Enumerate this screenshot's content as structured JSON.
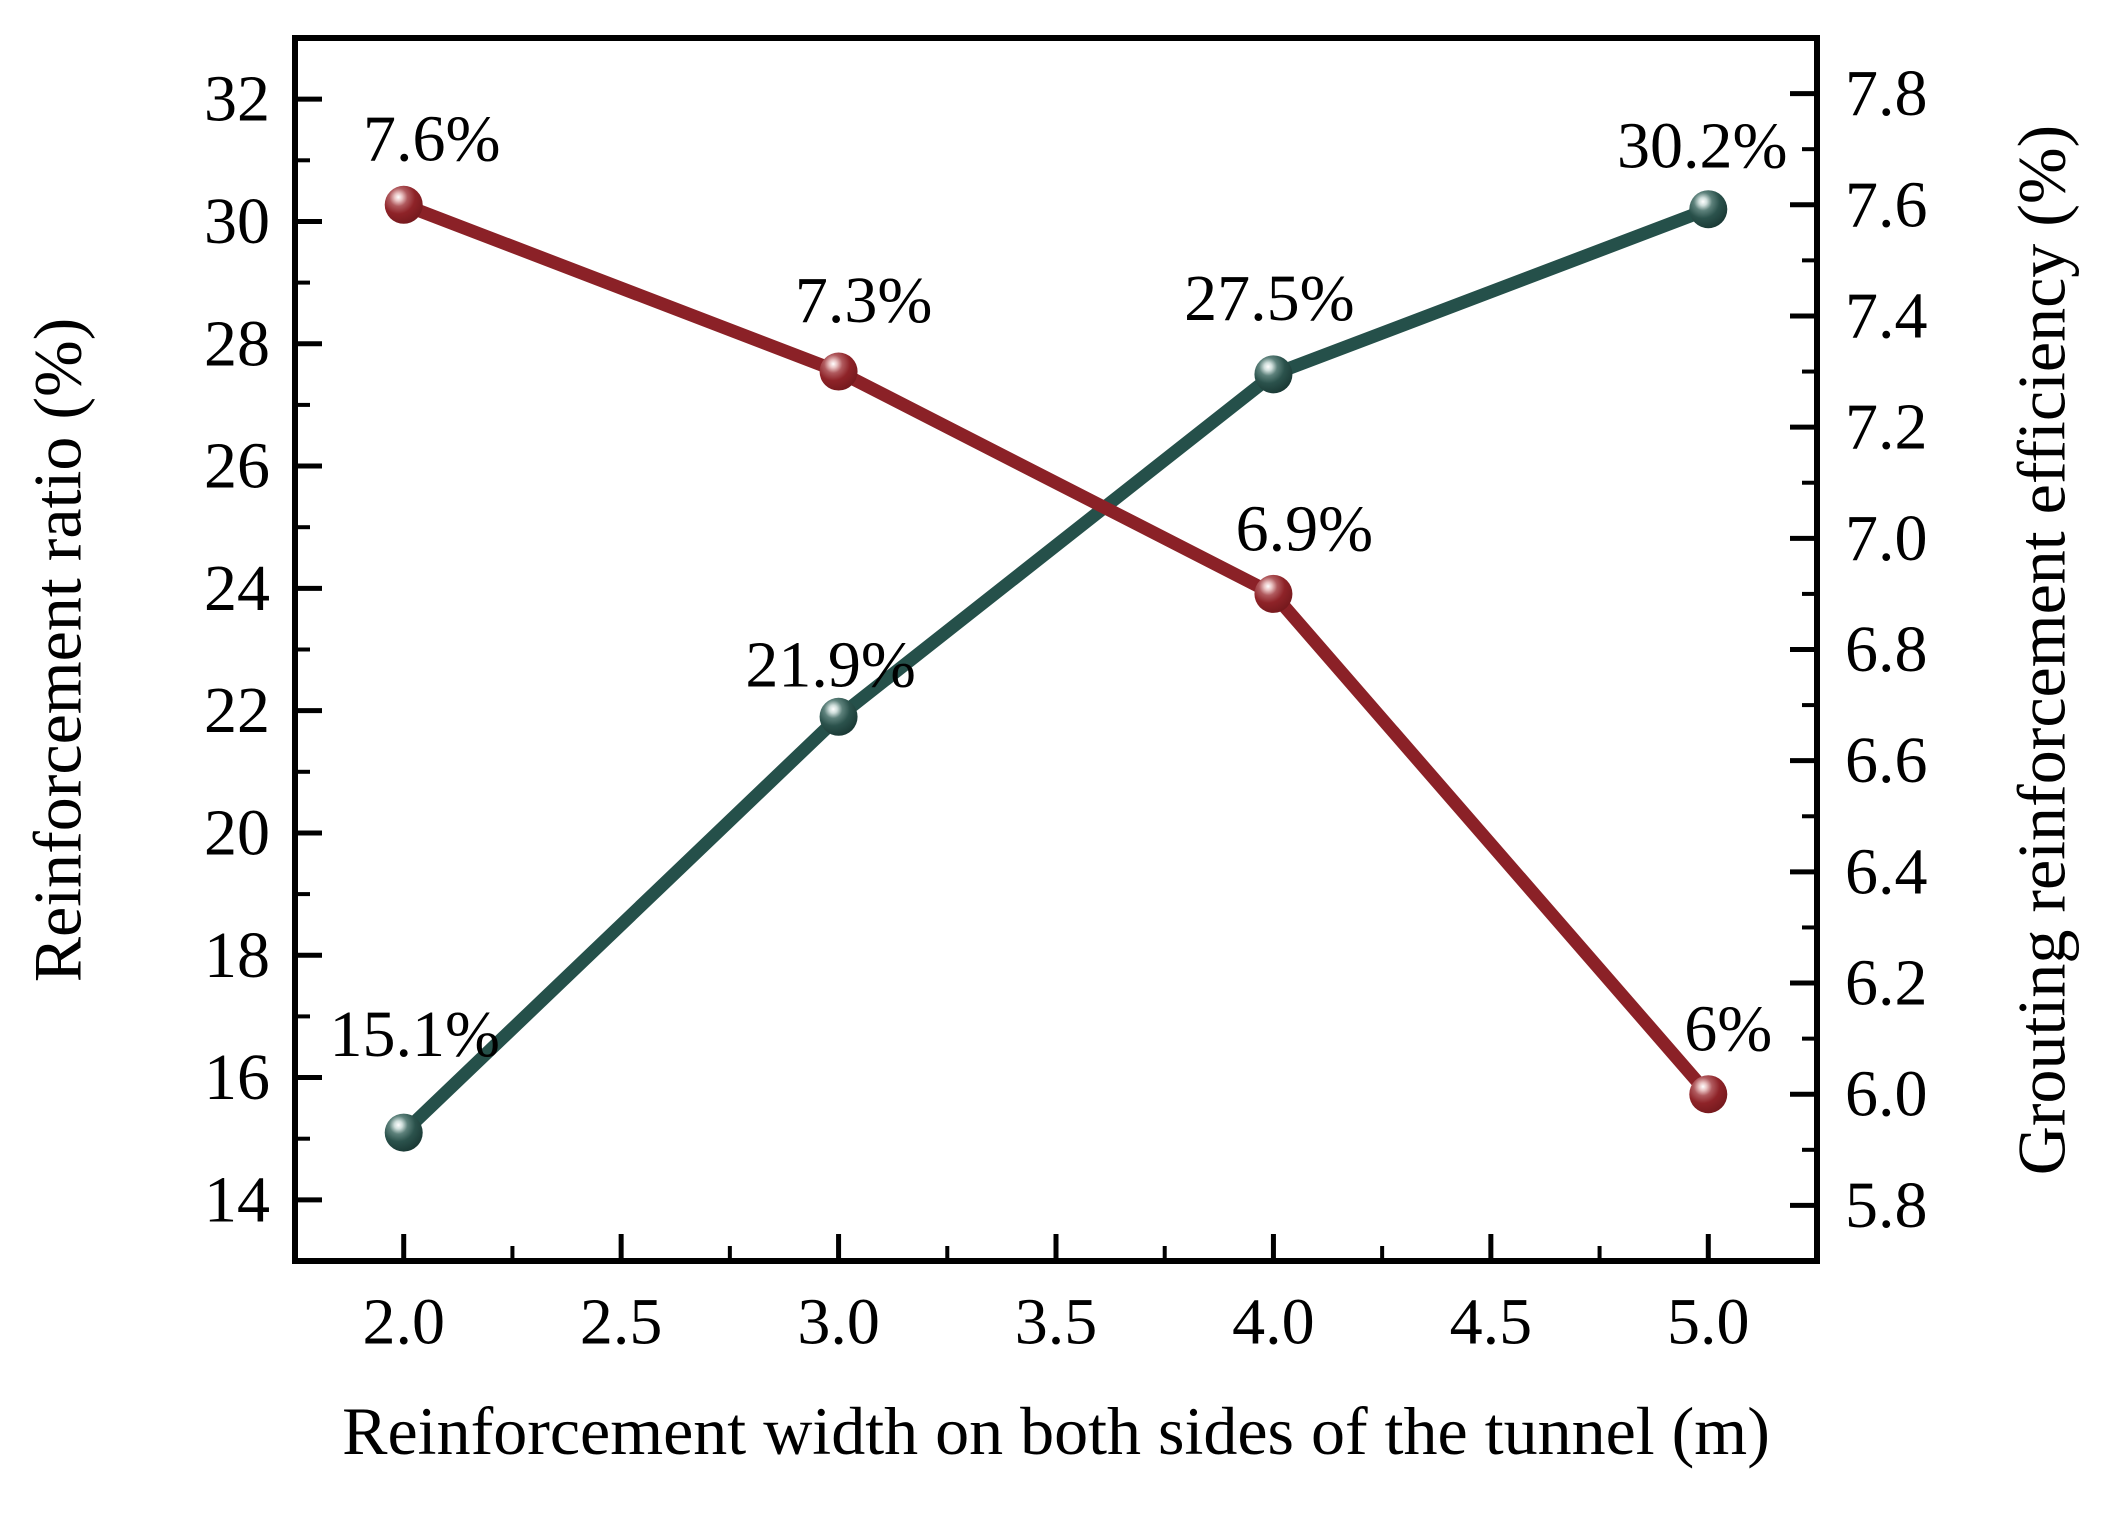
{
  "chart_data": {
    "type": "line",
    "title": "",
    "xlabel": "Reinforcement width on both sides of the tunnel (m)",
    "grid": false,
    "legend": "none",
    "background_color": "#ffffff",
    "frame_color": "#000000",
    "x_axis": {
      "min": 1.75,
      "max": 5.25,
      "major_ticks": [
        {
          "v": 2.0,
          "label": "2.0"
        },
        {
          "v": 2.5,
          "label": "2.5"
        },
        {
          "v": 3.0,
          "label": "3.0"
        },
        {
          "v": 3.5,
          "label": "3.5"
        },
        {
          "v": 4.0,
          "label": "4.0"
        },
        {
          "v": 4.5,
          "label": "4.5"
        },
        {
          "v": 5.0,
          "label": "5.0"
        }
      ],
      "minor_ticks": [
        2.25,
        2.75,
        3.25,
        3.75,
        4.25,
        4.75
      ]
    },
    "left_axis": {
      "label": "Reinforcement ratio (%)",
      "min": 13,
      "max": 33,
      "major_ticks": [
        {
          "v": 14,
          "label": "14"
        },
        {
          "v": 16,
          "label": "16"
        },
        {
          "v": 18,
          "label": "18"
        },
        {
          "v": 20,
          "label": "20"
        },
        {
          "v": 22,
          "label": "22"
        },
        {
          "v": 24,
          "label": "24"
        },
        {
          "v": 26,
          "label": "26"
        },
        {
          "v": 28,
          "label": "28"
        },
        {
          "v": 30,
          "label": "30"
        },
        {
          "v": 32,
          "label": "32"
        }
      ],
      "minor_ticks": [
        15,
        17,
        19,
        21,
        23,
        25,
        27,
        29,
        31
      ]
    },
    "right_axis": {
      "label": "Grouting reinforcement efficiency (%)",
      "min": 5.7,
      "max": 7.9,
      "major_ticks": [
        {
          "v": 5.8,
          "label": "5.8"
        },
        {
          "v": 6.0,
          "label": "6.0"
        },
        {
          "v": 6.2,
          "label": "6.2"
        },
        {
          "v": 6.4,
          "label": "6.4"
        },
        {
          "v": 6.6,
          "label": "6.6"
        },
        {
          "v": 6.8,
          "label": "6.8"
        },
        {
          "v": 7.0,
          "label": "7.0"
        },
        {
          "v": 7.2,
          "label": "7.2"
        },
        {
          "v": 7.4,
          "label": "7.4"
        },
        {
          "v": 7.6,
          "label": "7.6"
        },
        {
          "v": 7.8,
          "label": "7.8"
        }
      ],
      "minor_ticks": [
        5.9,
        6.1,
        6.3,
        6.5,
        6.7,
        6.9,
        7.1,
        7.3,
        7.5,
        7.7
      ]
    },
    "x": [
      2.0,
      3.0,
      4.0,
      5.0
    ],
    "series": [
      {
        "name": "Reinforcement ratio",
        "axis": "left",
        "color": "#25504A",
        "values": [
          15.1,
          21.9,
          27.5,
          30.2
        ],
        "point_labels": [
          "15.1%",
          "21.9%",
          "27.5%",
          "30.2%"
        ],
        "label_offsets": [
          [
            11,
            -98
          ],
          [
            -8,
            -52
          ],
          [
            -4,
            -76
          ],
          [
            -6,
            -63
          ]
        ]
      },
      {
        "name": "Grouting reinforcement efficiency",
        "axis": "right",
        "color": "#8B2127",
        "values": [
          7.6,
          7.3,
          6.9,
          6.0
        ],
        "point_labels": [
          "7.6%",
          "7.3%",
          "6.9%",
          "6%"
        ],
        "label_offsets": [
          [
            28,
            -66
          ],
          [
            25,
            -71
          ],
          [
            31,
            -65
          ],
          [
            20,
            -65
          ]
        ]
      }
    ]
  }
}
